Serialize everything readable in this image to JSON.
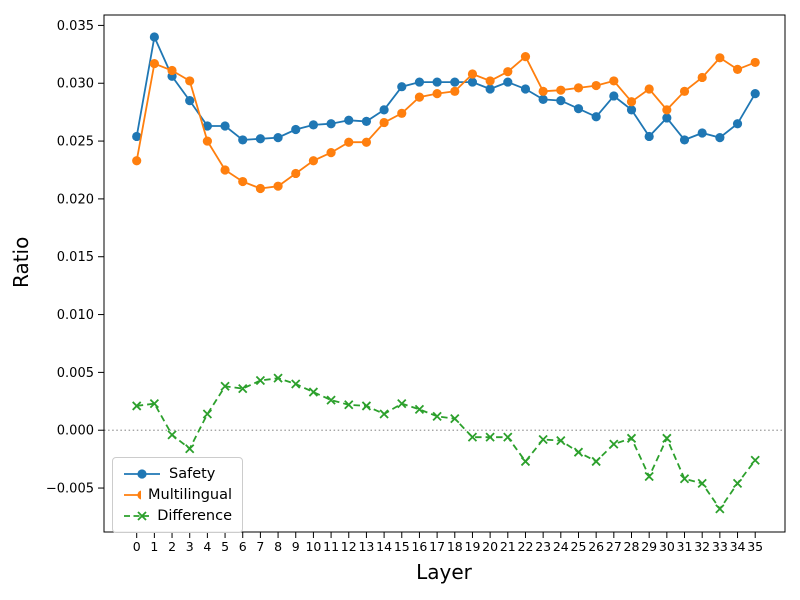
{
  "chart_data": {
    "type": "line",
    "title": "",
    "xlabel": "Layer",
    "ylabel": "Ratio",
    "grid": false,
    "legend_position": "lower left",
    "ylim": [
      -0.0088,
      0.0359
    ],
    "yticks": [
      0.035,
      0.03,
      0.025,
      0.02,
      0.015,
      0.01,
      0.005,
      0.0,
      -0.005
    ],
    "ytick_labels": [
      "0.035",
      "0.030",
      "0.025",
      "0.020",
      "0.015",
      "0.010",
      "0.005",
      "0.000",
      "−0.005"
    ],
    "x": [
      0,
      1,
      2,
      3,
      4,
      5,
      6,
      7,
      8,
      9,
      10,
      11,
      12,
      13,
      14,
      15,
      16,
      17,
      18,
      19,
      20,
      21,
      22,
      23,
      24,
      25,
      26,
      27,
      28,
      29,
      30,
      31,
      32,
      33,
      34,
      35
    ],
    "xtick_labels": [
      "0",
      "1",
      "2",
      "3",
      "4",
      "5",
      "6",
      "7",
      "8",
      "9",
      "10",
      "11",
      "12",
      "13",
      "14",
      "15",
      "16",
      "17",
      "18",
      "19",
      "20",
      "21",
      "22",
      "23",
      "24",
      "25",
      "26",
      "27",
      "28",
      "29",
      "30",
      "31",
      "32",
      "33",
      "34",
      "35"
    ],
    "zero_line": {
      "value": 0,
      "style": "dotted",
      "color": "#999999"
    },
    "series": [
      {
        "name": "Safety",
        "color": "#1f77b4",
        "marker": "circle",
        "line": "solid",
        "values": [
          0.0254,
          0.034,
          0.0306,
          0.0285,
          0.0263,
          0.0263,
          0.0251,
          0.0252,
          0.0253,
          0.026,
          0.0264,
          0.0265,
          0.0268,
          0.0267,
          0.0277,
          0.0297,
          0.0301,
          0.0301,
          0.0301,
          0.0301,
          0.0295,
          0.0301,
          0.0295,
          0.0286,
          0.0285,
          0.0278,
          0.0271,
          0.0289,
          0.0277,
          0.0254,
          0.027,
          0.0251,
          0.0257,
          0.0253,
          0.0265,
          0.0291
        ]
      },
      {
        "name": "Multilingual",
        "color": "#ff7f0e",
        "marker": "circle",
        "line": "solid",
        "values": [
          0.0233,
          0.0317,
          0.0311,
          0.0302,
          0.025,
          0.0225,
          0.0215,
          0.0209,
          0.0211,
          0.0222,
          0.0233,
          0.024,
          0.0249,
          0.0249,
          0.0266,
          0.0274,
          0.0288,
          0.0291,
          0.0293,
          0.0308,
          0.0302,
          0.031,
          0.0323,
          0.0293,
          0.0294,
          0.0296,
          0.0298,
          0.0302,
          0.0284,
          0.0295,
          0.0277,
          0.0293,
          0.0305,
          0.0322,
          0.0312,
          0.0318
        ]
      },
      {
        "name": "Difference",
        "color": "#2ca02c",
        "marker": "x",
        "line": "dashed",
        "values": [
          0.0021,
          0.0023,
          -0.0004,
          -0.0016,
          0.0014,
          0.0038,
          0.0036,
          0.0043,
          0.0045,
          0.004,
          0.0033,
          0.0026,
          0.0022,
          0.0021,
          0.0014,
          0.0023,
          0.0018,
          0.0012,
          0.001,
          -0.0006,
          -0.0006,
          -0.0006,
          -0.0027,
          -0.0008,
          -0.0009,
          -0.0019,
          -0.0027,
          -0.0012,
          -0.0007,
          -0.004,
          -0.0007,
          -0.0042,
          -0.0046,
          -0.0068,
          -0.0046,
          -0.0026
        ]
      }
    ]
  }
}
